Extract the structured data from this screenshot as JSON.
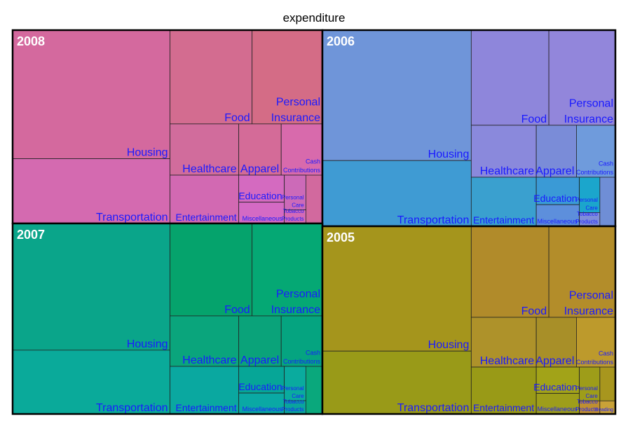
{
  "chart_data": {
    "type": "treemap",
    "title": "expenditure",
    "colors": {
      "2008": "#d2699e",
      "2006": "#6f8ed6",
      "2007": "#0aa87c",
      "2005": "#a8961e"
    },
    "groups": [
      {
        "year": "2008",
        "total": 100,
        "cells": [
          {
            "category": "Housing",
            "value": 19.0,
            "color": "#d4699e"
          },
          {
            "category": "Transportation",
            "value": 9.4,
            "color": "#d46ab0"
          },
          {
            "category": "Food",
            "value": 6.6,
            "color": "#d36c90"
          },
          {
            "category": "Personal Insurance",
            "value": 5.8,
            "color": "#d46c86"
          },
          {
            "category": "Healthcare",
            "value": 3.4,
            "color": "#d16c9c"
          },
          {
            "category": "Apparel",
            "value": 2.2,
            "color": "#d46b98"
          },
          {
            "category": "Cash Contributions",
            "value": 2.0,
            "color": "#d86aac"
          },
          {
            "category": "Entertainment",
            "value": 3.0,
            "color": "#d269b2"
          },
          {
            "category": "Education",
            "value": 1.4,
            "color": "#d46ac0"
          },
          {
            "category": "Personal Care",
            "value": 0.9,
            "color": "#cc6ab8"
          },
          {
            "category": "Miscellaneous",
            "value": 1.0,
            "color": "#d46ac4"
          },
          {
            "category": "Tobacco Products",
            "value": 0.5,
            "color": "#d46ab6"
          }
        ]
      },
      {
        "year": "2006",
        "total": 100,
        "cells": [
          {
            "category": "Housing",
            "value": 18.5,
            "color": "#6f95d9"
          },
          {
            "category": "Transportation",
            "value": 9.2,
            "color": "#3f9bd3"
          },
          {
            "category": "Food",
            "value": 6.4,
            "color": "#8e86db"
          },
          {
            "category": "Personal Insurance",
            "value": 5.7,
            "color": "#9286db"
          },
          {
            "category": "Healthcare",
            "value": 3.3,
            "color": "#8a89dc"
          },
          {
            "category": "Apparel",
            "value": 2.3,
            "color": "#7a8cd8"
          },
          {
            "category": "Cash Contributions",
            "value": 2.2,
            "color": "#6f9bdc"
          },
          {
            "category": "Entertainment",
            "value": 3.0,
            "color": "#3aa0cf"
          },
          {
            "category": "Education",
            "value": 1.5,
            "color": "#3a9ad6"
          },
          {
            "category": "Personal Care",
            "value": 0.9,
            "color": "#1ba6cc"
          },
          {
            "category": "Miscellaneous",
            "value": 1.1,
            "color": "#5d8fdc"
          },
          {
            "category": "Tobacco Products",
            "value": 0.5,
            "color": "#7f8ed9"
          }
        ]
      },
      {
        "year": "2007",
        "total": 100,
        "cells": [
          {
            "category": "Housing",
            "value": 18.8,
            "color": "#0aa58a"
          },
          {
            "category": "Transportation",
            "value": 9.3,
            "color": "#0aaa9a"
          },
          {
            "category": "Food",
            "value": 6.4,
            "color": "#05a36c"
          },
          {
            "category": "Personal Insurance",
            "value": 5.9,
            "color": "#05a874"
          },
          {
            "category": "Healthcare",
            "value": 3.3,
            "color": "#0aa57c"
          },
          {
            "category": "Apparel",
            "value": 2.3,
            "color": "#0aa37a"
          },
          {
            "category": "Cash Contributions",
            "value": 2.1,
            "color": "#05a480"
          },
          {
            "category": "Entertainment",
            "value": 3.0,
            "color": "#0aa8a0"
          },
          {
            "category": "Education",
            "value": 1.4,
            "color": "#06a697"
          },
          {
            "category": "Personal Care",
            "value": 0.9,
            "color": "#0aab9e"
          },
          {
            "category": "Miscellaneous",
            "value": 1.0,
            "color": "#0aa9a4"
          },
          {
            "category": "Tobacco Products",
            "value": 0.5,
            "color": "#0aa59c"
          }
        ]
      },
      {
        "year": "2005",
        "total": 100,
        "cells": [
          {
            "category": "Housing",
            "value": 18.3,
            "color": "#a5951c"
          },
          {
            "category": "Transportation",
            "value": 9.5,
            "color": "#999a18"
          },
          {
            "category": "Food",
            "value": 6.4,
            "color": "#b18b2a"
          },
          {
            "category": "Personal Insurance",
            "value": 5.7,
            "color": "#b38d2a"
          },
          {
            "category": "Healthcare",
            "value": 3.3,
            "color": "#ae922a"
          },
          {
            "category": "Apparel",
            "value": 2.3,
            "color": "#a88f28"
          },
          {
            "category": "Cash Contributions",
            "value": 1.9,
            "color": "#bd9a2c"
          },
          {
            "category": "Entertainment",
            "value": 3.1,
            "color": "#999a17"
          },
          {
            "category": "Education",
            "value": 1.3,
            "color": "#a2a318"
          },
          {
            "category": "Personal Care",
            "value": 1.0,
            "color": "#9e9d19"
          },
          {
            "category": "Miscellaneous",
            "value": 0.9,
            "color": "#9e9e1a"
          },
          {
            "category": "Tobacco Products",
            "value": 0.5,
            "color": "#bf8f30"
          },
          {
            "category": "Reading",
            "value": 0.2,
            "color": "#c9a237"
          }
        ]
      }
    ]
  }
}
